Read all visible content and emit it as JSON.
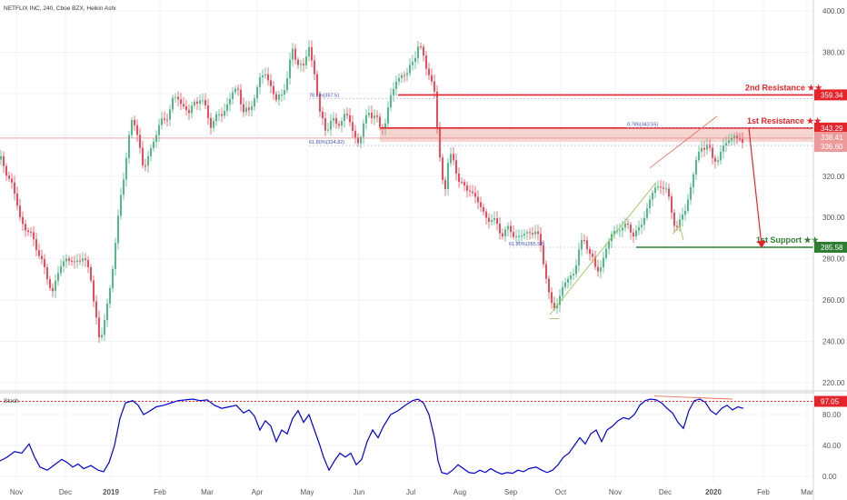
{
  "header": {
    "symbol_line": "NETFLIX INC, 240, Cboe BZX, Heikin Ashi"
  },
  "colors": {
    "bull": "#53b987",
    "bear": "#eb4d5c",
    "resistance": "#e4262c",
    "support": "#2e7d32",
    "zone": "#f4c7c0",
    "stoch": "#0000d8",
    "fib_text": "#3f51b5",
    "axis_text": "#555555",
    "grid": "#f0f3fa"
  },
  "chart_data": [
    {
      "type": "candlestick",
      "title": "NETFLIX INC, 240, Cboe BZX, Heikin Ashi",
      "ylim": [
        215,
        405
      ],
      "y_ticks": [
        220,
        240,
        260,
        280,
        300,
        320,
        340,
        360,
        380,
        400
      ],
      "y_tick_labels": [
        "220.00",
        "240.00",
        "260.00",
        "280.00",
        "300.00",
        "320.00",
        "340.00",
        "360.00",
        "380.00",
        "400.00"
      ],
      "x_ticks": [
        "Nov",
        "Dec",
        "2019",
        "Feb",
        "Mar",
        "Apr",
        "May",
        "Jun",
        "Jul",
        "Aug",
        "Sep",
        "Oct",
        "Nov",
        "Dec",
        "2020",
        "Feb",
        "Mar"
      ],
      "price_path": [
        [
          0,
          328
        ],
        [
          12,
          318
        ],
        [
          22,
          300
        ],
        [
          32,
          292
        ],
        [
          42,
          285
        ],
        [
          50,
          272
        ],
        [
          58,
          265
        ],
        [
          66,
          275
        ],
        [
          74,
          282
        ],
        [
          82,
          276
        ],
        [
          90,
          283
        ],
        [
          100,
          270
        ],
        [
          106,
          252
        ],
        [
          110,
          238
        ],
        [
          116,
          252
        ],
        [
          122,
          270
        ],
        [
          128,
          290
        ],
        [
          134,
          315
        ],
        [
          140,
          333
        ],
        [
          146,
          348
        ],
        [
          152,
          340
        ],
        [
          158,
          322
        ],
        [
          164,
          330
        ],
        [
          170,
          340
        ],
        [
          176,
          344
        ],
        [
          184,
          350
        ],
        [
          190,
          356
        ],
        [
          196,
          358
        ],
        [
          202,
          354
        ],
        [
          208,
          350
        ],
        [
          214,
          356
        ],
        [
          220,
          358
        ],
        [
          226,
          352
        ],
        [
          232,
          346
        ],
        [
          238,
          348
        ],
        [
          244,
          350
        ],
        [
          250,
          355
        ],
        [
          256,
          360
        ],
        [
          262,
          362
        ],
        [
          268,
          352
        ],
        [
          274,
          350
        ],
        [
          280,
          360
        ],
        [
          286,
          366
        ],
        [
          292,
          370
        ],
        [
          298,
          364
        ],
        [
          304,
          356
        ],
        [
          310,
          360
        ],
        [
          316,
          368
        ],
        [
          322,
          380
        ],
        [
          328,
          376
        ],
        [
          334,
          372
        ],
        [
          340,
          383
        ],
        [
          346,
          370
        ],
        [
          352,
          350
        ],
        [
          358,
          343
        ],
        [
          364,
          347
        ],
        [
          370,
          344
        ],
        [
          378,
          350
        ],
        [
          384,
          347
        ],
        [
          390,
          340
        ],
        [
          395,
          336
        ],
        [
          400,
          344
        ],
        [
          406,
          352
        ],
        [
          412,
          349
        ],
        [
          418,
          343
        ],
        [
          424,
          347
        ],
        [
          430,
          358
        ],
        [
          436,
          366
        ],
        [
          442,
          370
        ],
        [
          448,
          368
        ],
        [
          454,
          377
        ],
        [
          460,
          382
        ],
        [
          466,
          378
        ],
        [
          472,
          370
        ],
        [
          478,
          360
        ],
        [
          482,
          338
        ],
        [
          486,
          320
        ],
        [
          490,
          315
        ],
        [
          494,
          330
        ],
        [
          500,
          326
        ],
        [
          506,
          318
        ],
        [
          512,
          312
        ],
        [
          518,
          315
        ],
        [
          524,
          308
        ],
        [
          530,
          304
        ],
        [
          536,
          300
        ],
        [
          542,
          298
        ],
        [
          548,
          296
        ],
        [
          554,
          292
        ],
        [
          560,
          294
        ],
        [
          566,
          292
        ],
        [
          572,
          290
        ],
        [
          578,
          292
        ],
        [
          584,
          294
        ],
        [
          590,
          292
        ],
        [
          596,
          285
        ],
        [
          600,
          275
        ],
        [
          604,
          262
        ],
        [
          608,
          255
        ],
        [
          614,
          260
        ],
        [
          620,
          267
        ],
        [
          626,
          270
        ],
        [
          632,
          275
        ],
        [
          638,
          285
        ],
        [
          644,
          290
        ],
        [
          650,
          282
        ],
        [
          656,
          273
        ],
        [
          662,
          278
        ],
        [
          668,
          286
        ],
        [
          674,
          292
        ],
        [
          680,
          296
        ],
        [
          686,
          293
        ],
        [
          692,
          298
        ],
        [
          698,
          290
        ],
        [
          704,
          295
        ],
        [
          710,
          302
        ],
        [
          716,
          310
        ],
        [
          722,
          314
        ],
        [
          728,
          317
        ],
        [
          734,
          311
        ],
        [
          740,
          302
        ],
        [
          744,
          295
        ],
        [
          748,
          297
        ],
        [
          754,
          304
        ],
        [
          760,
          315
        ],
        [
          766,
          327
        ],
        [
          772,
          334
        ],
        [
          778,
          336
        ],
        [
          784,
          327
        ],
        [
          790,
          330
        ],
        [
          796,
          333
        ],
        [
          802,
          338
        ],
        [
          808,
          340
        ],
        [
          814,
          337
        ],
        [
          818,
          334
        ]
      ],
      "series": [
        {
          "name": "2nd Resistance ★★",
          "value": 359.34
        },
        {
          "name": "1st Resistance ★★",
          "value": 343.29
        },
        {
          "name": "1st Support ★★",
          "value": 285.58
        }
      ],
      "price_labels": [
        {
          "text": "359.34",
          "value": 359.34,
          "kind": "resistance"
        },
        {
          "text": "343.29",
          "value": 343.29,
          "kind": "resistance"
        },
        {
          "text": "338.41",
          "value": 338.41,
          "kind": "current"
        },
        {
          "text": "336.60",
          "value": 336.6,
          "kind": "zone"
        },
        {
          "text": "285.58",
          "value": 285.58,
          "kind": "support"
        }
      ],
      "zone": {
        "from": 336.6,
        "to": 343.29
      },
      "fib_labels": [
        {
          "text": "78.6%(357.5)",
          "value": 357.5
        },
        {
          "text": "61.80%(334.82)",
          "value": 334.82
        },
        {
          "text": "0.786(343.55)",
          "value": 343.55
        },
        {
          "text": "61.80%(285.58)",
          "value": 285.58
        }
      ]
    },
    {
      "type": "line",
      "title": "Stoch",
      "ylim": [
        -2,
        102
      ],
      "y_ticks": [
        0,
        40,
        80
      ],
      "y_tick_labels": [
        "0.00",
        "40.00",
        "80.00"
      ],
      "level": {
        "text": "97.05",
        "value": 97.05
      },
      "series": [
        {
          "name": "Stoch",
          "points": [
            [
              0,
              20
            ],
            [
              8,
              25
            ],
            [
              16,
              32
            ],
            [
              24,
              30
            ],
            [
              32,
              42
            ],
            [
              38,
              25
            ],
            [
              44,
              12
            ],
            [
              52,
              8
            ],
            [
              60,
              15
            ],
            [
              68,
              22
            ],
            [
              74,
              18
            ],
            [
              80,
              12
            ],
            [
              86,
              16
            ],
            [
              92,
              10
            ],
            [
              100,
              14
            ],
            [
              108,
              8
            ],
            [
              114,
              6
            ],
            [
              120,
              18
            ],
            [
              126,
              40
            ],
            [
              132,
              75
            ],
            [
              138,
              95
            ],
            [
              146,
              98
            ],
            [
              152,
              92
            ],
            [
              158,
              80
            ],
            [
              164,
              84
            ],
            [
              172,
              90
            ],
            [
              180,
              92
            ],
            [
              188,
              95
            ],
            [
              196,
              98
            ],
            [
              204,
              99
            ],
            [
              212,
              100
            ],
            [
              220,
              98
            ],
            [
              228,
              99
            ],
            [
              236,
              92
            ],
            [
              244,
              88
            ],
            [
              252,
              90
            ],
            [
              260,
              92
            ],
            [
              268,
              82
            ],
            [
              274,
              86
            ],
            [
              280,
              78
            ],
            [
              286,
              60
            ],
            [
              292,
              72
            ],
            [
              298,
              65
            ],
            [
              304,
              45
            ],
            [
              310,
              60
            ],
            [
              316,
              55
            ],
            [
              322,
              75
            ],
            [
              328,
              85
            ],
            [
              334,
              70
            ],
            [
              340,
              80
            ],
            [
              346,
              60
            ],
            [
              352,
              40
            ],
            [
              356,
              25
            ],
            [
              362,
              8
            ],
            [
              368,
              20
            ],
            [
              374,
              30
            ],
            [
              380,
              25
            ],
            [
              386,
              30
            ],
            [
              392,
              15
            ],
            [
              398,
              22
            ],
            [
              404,
              45
            ],
            [
              410,
              60
            ],
            [
              416,
              50
            ],
            [
              422,
              65
            ],
            [
              430,
              80
            ],
            [
              438,
              85
            ],
            [
              446,
              92
            ],
            [
              454,
              98
            ],
            [
              460,
              100
            ],
            [
              466,
              95
            ],
            [
              472,
              80
            ],
            [
              478,
              50
            ],
            [
              482,
              20
            ],
            [
              486,
              5
            ],
            [
              492,
              3
            ],
            [
              498,
              8
            ],
            [
              504,
              15
            ],
            [
              510,
              10
            ],
            [
              516,
              5
            ],
            [
              522,
              4
            ],
            [
              528,
              8
            ],
            [
              534,
              5
            ],
            [
              540,
              10
            ],
            [
              546,
              6
            ],
            [
              552,
              3
            ],
            [
              558,
              5
            ],
            [
              564,
              4
            ],
            [
              570,
              8
            ],
            [
              576,
              6
            ],
            [
              582,
              10
            ],
            [
              590,
              12
            ],
            [
              596,
              8
            ],
            [
              602,
              5
            ],
            [
              608,
              8
            ],
            [
              614,
              15
            ],
            [
              620,
              25
            ],
            [
              626,
              30
            ],
            [
              632,
              40
            ],
            [
              638,
              50
            ],
            [
              644,
              42
            ],
            [
              650,
              55
            ],
            [
              656,
              60
            ],
            [
              662,
              45
            ],
            [
              668,
              60
            ],
            [
              674,
              65
            ],
            [
              680,
              72
            ],
            [
              686,
              76
            ],
            [
              692,
              74
            ],
            [
              698,
              80
            ],
            [
              704,
              92
            ],
            [
              710,
              98
            ],
            [
              716,
              100
            ],
            [
              722,
              99
            ],
            [
              728,
              95
            ],
            [
              734,
              88
            ],
            [
              740,
              82
            ],
            [
              746,
              70
            ],
            [
              752,
              62
            ],
            [
              758,
              85
            ],
            [
              764,
              98
            ],
            [
              770,
              100
            ],
            [
              776,
              96
            ],
            [
              782,
              85
            ],
            [
              788,
              80
            ],
            [
              794,
              88
            ],
            [
              800,
              92
            ],
            [
              806,
              86
            ],
            [
              812,
              90
            ],
            [
              818,
              88
            ]
          ]
        }
      ]
    }
  ],
  "time_axis": {
    "labels": [
      "Nov",
      "Dec",
      "2019",
      "Feb",
      "Mar",
      "Apr",
      "May",
      "Jun",
      "Jul",
      "Aug",
      "Sep",
      "Oct",
      "Nov",
      "Dec",
      "2020",
      "Feb",
      "Mar"
    ]
  }
}
